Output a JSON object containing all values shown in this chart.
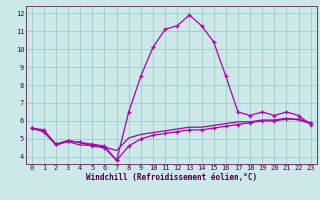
{
  "xlabel": "Windchill (Refroidissement éolien,°C)",
  "bg_color": "#cce8e8",
  "grid_color": "#99cccc",
  "line_color": "#aa00aa",
  "x_ticks": [
    0,
    1,
    2,
    3,
    4,
    5,
    6,
    7,
    8,
    9,
    10,
    11,
    12,
    13,
    14,
    15,
    16,
    17,
    18,
    19,
    20,
    21,
    22,
    23
  ],
  "y_ticks": [
    4,
    5,
    6,
    7,
    8,
    9,
    10,
    11,
    12
  ],
  "ylim": [
    3.6,
    12.4
  ],
  "xlim": [
    -0.5,
    23.5
  ],
  "line1_x": [
    0,
    1,
    2,
    3,
    4,
    5,
    6,
    7,
    8,
    9,
    10,
    11,
    12,
    13,
    14,
    15,
    16,
    17,
    18,
    19,
    20,
    21,
    22,
    23
  ],
  "line1_y": [
    5.6,
    5.5,
    4.7,
    4.9,
    4.8,
    4.7,
    4.6,
    3.8,
    4.6,
    5.0,
    5.2,
    5.3,
    5.4,
    5.5,
    5.5,
    5.6,
    5.7,
    5.8,
    5.9,
    6.0,
    6.0,
    6.1,
    6.1,
    5.9
  ],
  "line2_x": [
    0,
    1,
    2,
    3,
    4,
    5,
    6,
    7,
    8,
    9,
    10,
    11,
    12,
    13,
    14,
    15,
    16,
    17,
    18,
    19,
    20,
    21,
    22,
    23
  ],
  "line2_y": [
    5.6,
    5.4,
    4.65,
    4.85,
    4.65,
    4.65,
    4.55,
    4.35,
    5.05,
    5.25,
    5.35,
    5.45,
    5.55,
    5.65,
    5.65,
    5.75,
    5.85,
    5.95,
    5.95,
    6.05,
    6.05,
    6.15,
    6.05,
    5.85
  ],
  "line3_x": [
    0,
    1,
    2,
    3,
    4,
    5,
    6,
    7,
    8,
    9,
    10,
    11,
    12,
    13,
    14,
    15,
    16,
    17,
    18,
    19,
    20,
    21,
    22,
    23
  ],
  "line3_y": [
    5.6,
    5.4,
    4.7,
    4.9,
    4.8,
    4.6,
    4.5,
    3.8,
    6.5,
    8.5,
    10.1,
    11.1,
    11.3,
    11.9,
    11.3,
    10.4,
    8.5,
    6.5,
    6.3,
    6.5,
    6.3,
    6.5,
    6.3,
    5.8
  ]
}
